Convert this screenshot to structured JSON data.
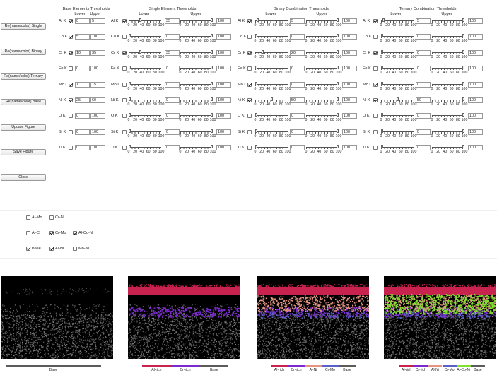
{
  "buttons": [
    "Re(name/color) Single",
    "Re(name/color) Binary",
    "Re(name/color) Ternary",
    "Re(name/color) Base",
    "Update Figure",
    "Save Figure",
    "Close"
  ],
  "headers": {
    "base": "Base Elements Thresholds",
    "single": "Single Element Thresholds",
    "binary": "Binary Combination Thresholds",
    "ternary": "Ternary Combination Thresholds",
    "lower": "Lower",
    "upper": "Upper"
  },
  "tick_labels": [
    "0",
    "20",
    "40",
    "60",
    "80",
    "100"
  ],
  "elements": [
    "Al K",
    "Co K",
    "Cr K",
    "Fe K",
    "Mo L",
    "Ni K",
    "O K",
    "Si K",
    "Ti K"
  ],
  "base": [
    {
      "checked": true,
      "lower": "0",
      "upper": "5"
    },
    {
      "checked": true,
      "lower": "5",
      "upper": "100"
    },
    {
      "checked": true,
      "lower": "10",
      "upper": "35"
    },
    {
      "checked": false,
      "lower": "0",
      "upper": "100"
    },
    {
      "checked": true,
      "lower": "1",
      "upper": "15"
    },
    {
      "checked": true,
      "lower": "25",
      "upper": "60"
    },
    {
      "checked": false,
      "lower": "0",
      "upper": "100"
    },
    {
      "checked": false,
      "lower": "0",
      "upper": "100"
    },
    {
      "checked": false,
      "lower": "0",
      "upper": "100"
    }
  ],
  "single": [
    {
      "checked": true,
      "lower": "35",
      "upper": "100"
    },
    {
      "checked": false,
      "lower": "0",
      "upper": "100"
    },
    {
      "checked": true,
      "lower": "35",
      "upper": "100"
    },
    {
      "checked": false,
      "lower": "0",
      "upper": "100"
    },
    {
      "checked": false,
      "lower": "0",
      "upper": "100"
    },
    {
      "checked": false,
      "lower": "0",
      "upper": "100"
    },
    {
      "checked": false,
      "lower": "0",
      "upper": "100"
    },
    {
      "checked": false,
      "lower": "0",
      "upper": "100"
    },
    {
      "checked": false,
      "lower": "0",
      "upper": "100"
    }
  ],
  "binary": [
    {
      "checked": true,
      "lower": "5",
      "upper": "100"
    },
    {
      "checked": false,
      "lower": "0",
      "upper": "100"
    },
    {
      "checked": true,
      "lower": "20",
      "upper": "100"
    },
    {
      "checked": false,
      "lower": "0",
      "upper": "100"
    },
    {
      "checked": true,
      "lower": "0",
      "upper": "100"
    },
    {
      "checked": true,
      "lower": "50",
      "upper": "100"
    },
    {
      "checked": false,
      "lower": "0",
      "upper": "100"
    },
    {
      "checked": false,
      "lower": "0",
      "upper": "100"
    },
    {
      "checked": false,
      "lower": "0",
      "upper": "100"
    }
  ],
  "ternary": [
    {
      "checked": true,
      "lower": "5",
      "upper": "100"
    },
    {
      "checked": false,
      "lower": "0",
      "upper": "100"
    },
    {
      "checked": true,
      "lower": "0",
      "upper": "100"
    },
    {
      "checked": false,
      "lower": "0",
      "upper": "100"
    },
    {
      "checked": true,
      "lower": "0",
      "upper": "100"
    },
    {
      "checked": true,
      "lower": "50",
      "upper": "100"
    },
    {
      "checked": false,
      "lower": "0",
      "upper": "100"
    },
    {
      "checked": false,
      "lower": "0",
      "upper": "100"
    },
    {
      "checked": false,
      "lower": "0",
      "upper": "100"
    }
  ],
  "combos": [
    {
      "label": "Al-Mo",
      "checked": false
    },
    {
      "label": "Cr-Ni",
      "checked": false
    },
    {
      "label": "Al-Cr",
      "checked": false
    },
    {
      "label": "Cr-Mo",
      "checked": true
    },
    {
      "label": "Al-Co-Ni",
      "checked": true
    },
    {
      "label": "Base",
      "checked": true
    },
    {
      "label": "Al-Ni",
      "checked": true
    },
    {
      "label": "Mo-Ni",
      "checked": false
    }
  ],
  "colors": {
    "Al-rich": "#c8234f",
    "Cr-rich": "#7a2ad0",
    "Al-Ni": "#e49480",
    "Cr-Mo": "#5a62c8",
    "Al-Co-Ni": "#84e030",
    "Base": "#5b5b5b"
  },
  "legends": [
    [
      "Base"
    ],
    [
      "Al-rich",
      "Cr-rich",
      "Base"
    ],
    [
      "Al-rich",
      "Cr-rich",
      "Al-Ni",
      "Cr-Mo",
      "Base"
    ],
    [
      "Al-rich",
      "Cr-rich",
      "Al-Ni",
      "Cr-Mo",
      "Al-Co-Ni",
      "Base"
    ]
  ]
}
